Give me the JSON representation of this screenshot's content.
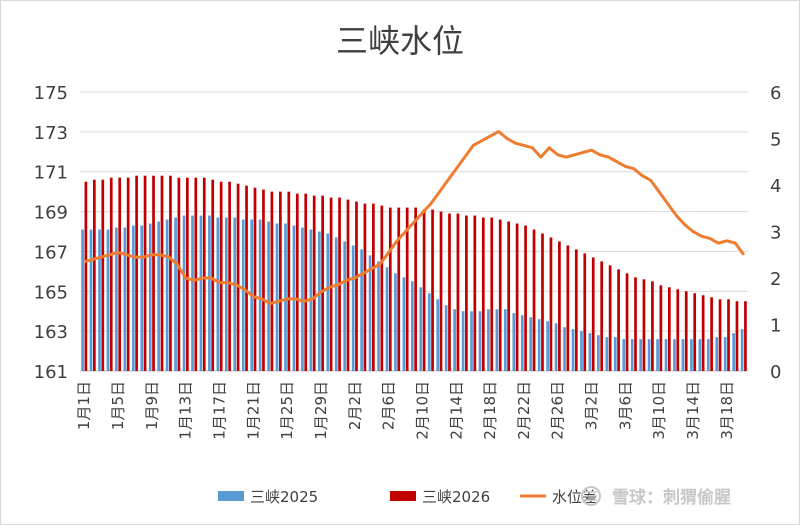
{
  "chart_data": {
    "type": "bar",
    "title": "三峡水位",
    "left_axis": {
      "ylim": [
        161,
        175
      ],
      "ticks": [
        161,
        163,
        165,
        167,
        169,
        171,
        173,
        175
      ]
    },
    "right_axis": {
      "ylim": [
        0,
        6
      ],
      "ticks": [
        0,
        1,
        2,
        3,
        4,
        5,
        6
      ]
    },
    "grid": true,
    "legend_position": "bottom",
    "x_tick_labels": [
      "1月1日",
      "1月5日",
      "1月9日",
      "1月13日",
      "1月17日",
      "1月21日",
      "1月25日",
      "1月29日",
      "2月2日",
      "2月6日",
      "2月10日",
      "2月14日",
      "2月18日",
      "2月22日",
      "2月26日",
      "3月2日",
      "3月6日",
      "3月10日",
      "3月14日",
      "3月18日"
    ],
    "categories": [
      "1月1日",
      "1月2日",
      "1月3日",
      "1月4日",
      "1月5日",
      "1月6日",
      "1月7日",
      "1月8日",
      "1月9日",
      "1月10日",
      "1月11日",
      "1月12日",
      "1月13日",
      "1月14日",
      "1月15日",
      "1月16日",
      "1月17日",
      "1月18日",
      "1月19日",
      "1月20日",
      "1月21日",
      "1月22日",
      "1月23日",
      "1月24日",
      "1月25日",
      "1月26日",
      "1月27日",
      "1月28日",
      "1月29日",
      "1月30日",
      "1月31日",
      "2月1日",
      "2月2日",
      "2月3日",
      "2月4日",
      "2月5日",
      "2月6日",
      "2月7日",
      "2月8日",
      "2月9日",
      "2月10日",
      "2月11日",
      "2月12日",
      "2月13日",
      "2月14日",
      "2月15日",
      "2月16日",
      "2月17日",
      "2月18日",
      "2月19日",
      "2月20日",
      "2月21日",
      "2月22日",
      "2月23日",
      "2月24日",
      "2月25日",
      "2月26日",
      "2月27日",
      "2月28日",
      "3月1日",
      "3月2日",
      "3月3日",
      "3月4日",
      "3月5日",
      "3月6日",
      "3月7日",
      "3月8日",
      "3月9日",
      "3月10日",
      "3月11日",
      "3月12日",
      "3月13日",
      "3月14日",
      "3月15日",
      "3月16日",
      "3月17日",
      "3月18日",
      "3月19日",
      "3月20日"
    ],
    "series": [
      {
        "name": "三峡2025",
        "type": "bar",
        "axis": "left",
        "color": "#5b9bd5",
        "values": [
          168.1,
          168.1,
          168.1,
          168.1,
          168.2,
          168.2,
          168.3,
          168.3,
          168.4,
          168.5,
          168.6,
          168.7,
          168.8,
          168.8,
          168.8,
          168.8,
          168.7,
          168.7,
          168.7,
          168.6,
          168.6,
          168.6,
          168.5,
          168.4,
          168.4,
          168.3,
          168.2,
          168.1,
          168.0,
          167.9,
          167.7,
          167.5,
          167.3,
          167.1,
          166.8,
          166.5,
          166.2,
          165.9,
          165.7,
          165.5,
          165.2,
          164.9,
          164.6,
          164.3,
          164.1,
          164.0,
          164.0,
          164.0,
          164.1,
          164.1,
          164.1,
          163.9,
          163.8,
          163.7,
          163.6,
          163.5,
          163.4,
          163.2,
          163.1,
          163.0,
          162.9,
          162.8,
          162.7,
          162.7,
          162.6,
          162.6,
          162.6,
          162.6,
          162.6,
          162.6,
          162.6,
          162.6,
          162.6,
          162.6,
          162.6,
          162.7,
          162.7,
          162.9,
          163.1
        ]
      },
      {
        "name": "三峡2026",
        "type": "bar",
        "axis": "left",
        "color": "#c00000",
        "values": [
          170.5,
          170.6,
          170.6,
          170.7,
          170.7,
          170.7,
          170.8,
          170.8,
          170.8,
          170.8,
          170.8,
          170.7,
          170.7,
          170.7,
          170.7,
          170.6,
          170.5,
          170.5,
          170.4,
          170.3,
          170.2,
          170.1,
          170.0,
          170.0,
          170.0,
          169.9,
          169.9,
          169.8,
          169.8,
          169.7,
          169.7,
          169.6,
          169.5,
          169.4,
          169.4,
          169.3,
          169.2,
          169.2,
          169.2,
          169.2,
          169.1,
          169.1,
          169.0,
          168.9,
          168.9,
          168.8,
          168.8,
          168.7,
          168.7,
          168.6,
          168.5,
          168.4,
          168.3,
          168.1,
          167.9,
          167.7,
          167.5,
          167.3,
          167.1,
          166.9,
          166.7,
          166.5,
          166.3,
          166.1,
          165.9,
          165.7,
          165.6,
          165.5,
          165.3,
          165.2,
          165.1,
          165.0,
          164.9,
          164.8,
          164.7,
          164.6,
          164.6,
          164.5,
          164.5
        ]
      },
      {
        "name": "水位差",
        "type": "line",
        "axis": "right",
        "color": "#ed7d31",
        "values": [
          2.35,
          2.4,
          2.45,
          2.5,
          2.55,
          2.5,
          2.45,
          2.45,
          2.5,
          2.5,
          2.45,
          2.3,
          2.0,
          1.95,
          2.0,
          2.0,
          1.9,
          1.9,
          1.85,
          1.75,
          1.6,
          1.55,
          1.45,
          1.5,
          1.55,
          1.55,
          1.5,
          1.55,
          1.7,
          1.8,
          1.85,
          1.95,
          2.0,
          2.1,
          2.2,
          2.3,
          2.55,
          2.8,
          3.0,
          3.2,
          3.4,
          3.6,
          3.85,
          4.1,
          4.35,
          4.6,
          4.85,
          4.95,
          5.05,
          5.15,
          5.0,
          4.9,
          4.85,
          4.8,
          4.6,
          4.8,
          4.65,
          4.6,
          4.65,
          4.7,
          4.75,
          4.65,
          4.6,
          4.5,
          4.4,
          4.35,
          4.2,
          4.1,
          3.85,
          3.6,
          3.35,
          3.15,
          3.0,
          2.9,
          2.85,
          2.75,
          2.8,
          2.75,
          2.5
        ]
      }
    ]
  },
  "legend": [
    {
      "label": "三峡2025",
      "color": "#5b9bd5",
      "kind": "bar"
    },
    {
      "label": "三峡2026",
      "color": "#c00000",
      "kind": "bar"
    },
    {
      "label": "水位差",
      "color": "#ed7d31",
      "kind": "line"
    }
  ],
  "watermark": "雪球：刺猬偷腥"
}
